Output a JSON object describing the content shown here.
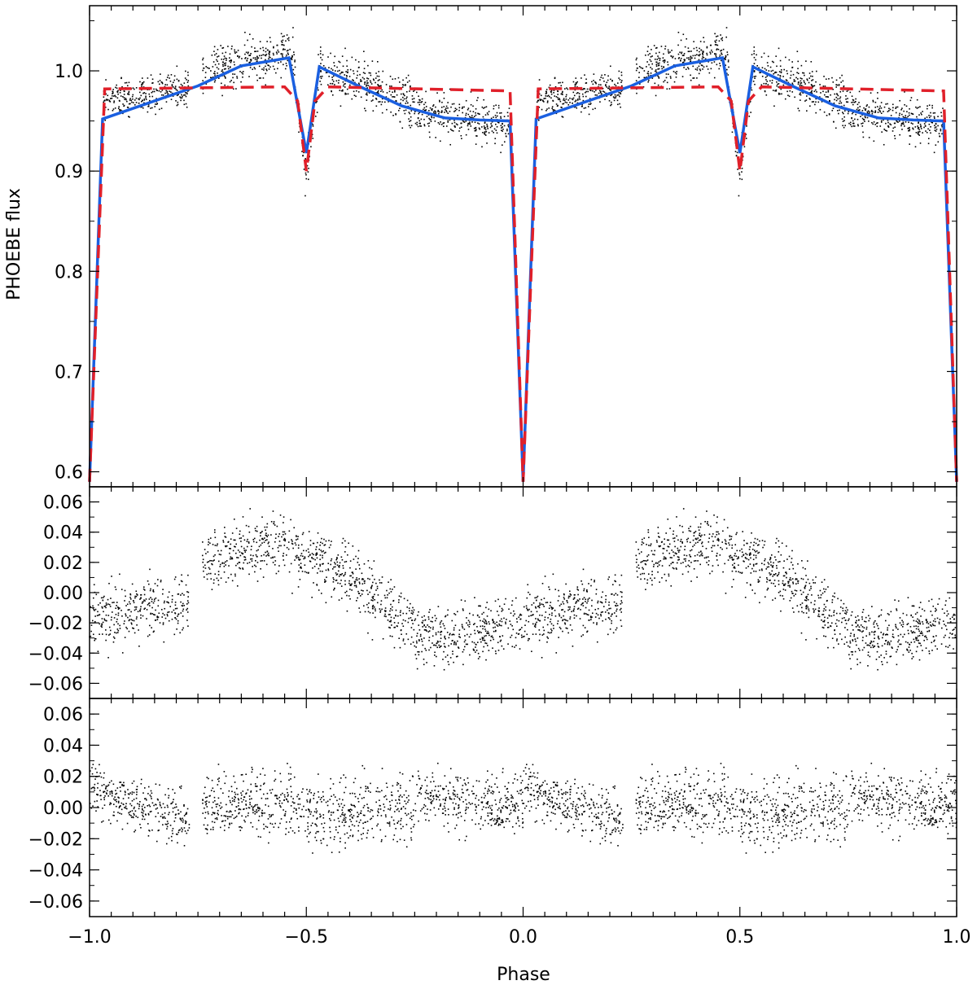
{
  "chart_data": [
    {
      "type": "scatter",
      "panel": "light-curve",
      "ylabel": "PHOEBE flux",
      "xlim": [
        -1.0,
        1.0
      ],
      "ylim": [
        0.585,
        1.065
      ],
      "yticks": [
        "0.6",
        "0.7",
        "0.8",
        "0.9",
        "1.0"
      ],
      "ytick_values": [
        0.6,
        0.7,
        0.8,
        0.9,
        1.0
      ],
      "grid": false,
      "series": [
        {
          "style": "black-dots",
          "color": "#000000",
          "description_points": "observed flux versus phase, mirrored about phase 0",
          "segments": [
            {
              "x_range": [
                0.03,
                0.23
              ],
              "y_start": 0.968,
              "y_end": 0.985,
              "scatter": 0.018
            },
            {
              "x_range": [
                0.26,
                0.47
              ],
              "y_start": 1.0,
              "y_end": 1.02,
              "scatter": 0.02
            },
            {
              "x_range": [
                0.47,
                0.53
              ],
              "dip_min": 0.895,
              "scatter": 0.02
            },
            {
              "x_range": [
                0.53,
                0.75
              ],
              "y_start": 1.005,
              "y_end": 0.965,
              "scatter": 0.022
            },
            {
              "x_range": [
                0.75,
                0.97
              ],
              "y_start": 0.96,
              "y_end": 0.945,
              "scatter": 0.018
            }
          ]
        },
        {
          "style": "solid",
          "color": "#1a5fe0",
          "x": [
            0.0,
            0.03,
            0.25,
            0.35,
            0.46,
            0.5,
            0.53,
            0.62,
            0.72,
            0.82,
            0.9,
            0.97,
            1.0
          ],
          "y": [
            0.59,
            0.952,
            0.985,
            1.005,
            1.013,
            0.918,
            1.004,
            0.985,
            0.965,
            0.953,
            0.951,
            0.95,
            0.59
          ],
          "mirrored": true
        },
        {
          "style": "dashed",
          "color": "#e0202a",
          "x": [
            0.0,
            0.035,
            0.45,
            0.48,
            0.5,
            0.52,
            0.55,
            0.97,
            1.0
          ],
          "y": [
            0.59,
            0.982,
            0.984,
            0.97,
            0.9,
            0.97,
            0.984,
            0.98,
            0.59
          ],
          "mirrored": true
        }
      ]
    },
    {
      "type": "scatter",
      "panel": "residuals-1",
      "xlim": [
        -1.0,
        1.0
      ],
      "ylim": [
        -0.07,
        0.07
      ],
      "yticks": [
        "0.06",
        "0.04",
        "0.02",
        "0.00",
        "−0.02",
        "−0.04",
        "−0.06"
      ],
      "ytick_values": [
        0.06,
        0.04,
        0.02,
        0.0,
        -0.02,
        -0.04,
        -0.06
      ],
      "series": [
        {
          "style": "black-dots",
          "color": "#000000",
          "periodic": true,
          "segments": [
            {
              "x_range": [
                0.0,
                0.23
              ],
              "y_start": -0.018,
              "y_end": -0.005,
              "scatter": 0.017
            },
            {
              "x_range": [
                0.26,
                0.45
              ],
              "y_start": 0.02,
              "y_end": 0.035,
              "scatter": 0.018
            },
            {
              "x_range": [
                0.45,
                0.62
              ],
              "y_start": 0.03,
              "y_end": 0.01,
              "scatter": 0.018
            },
            {
              "x_range": [
                0.62,
                0.75
              ],
              "y_start": 0.005,
              "y_end": -0.025,
              "scatter": 0.018
            },
            {
              "x_range": [
                0.75,
                1.0
              ],
              "y_start": -0.03,
              "y_end": -0.02,
              "scatter": 0.016
            }
          ]
        }
      ]
    },
    {
      "type": "scatter",
      "panel": "residuals-2",
      "xlabel": "Phase",
      "xlim": [
        -1.0,
        1.0
      ],
      "ylim": [
        -0.07,
        0.07
      ],
      "xticks": [
        "−1.0",
        "−0.5",
        "0.0",
        "0.5",
        "1.0"
      ],
      "xtick_values": [
        -1.0,
        -0.5,
        0.0,
        0.5,
        1.0
      ],
      "yticks": [
        "0.06",
        "0.04",
        "0.02",
        "0.00",
        "−0.02",
        "−0.04",
        "−0.06"
      ],
      "ytick_values": [
        0.06,
        0.04,
        0.02,
        0.0,
        -0.02,
        -0.04,
        -0.06
      ],
      "series": [
        {
          "style": "black-dots",
          "color": "#000000",
          "periodic": true,
          "segments": [
            {
              "x_range": [
                0.0,
                0.23
              ],
              "y_start": 0.012,
              "y_end": -0.01,
              "scatter": 0.015
            },
            {
              "x_range": [
                0.26,
                0.5
              ],
              "y_start": 0.0,
              "y_end": 0.005,
              "scatter": 0.018
            },
            {
              "x_range": [
                0.5,
                0.75
              ],
              "y_start": -0.005,
              "y_end": 0.0,
              "scatter": 0.02
            },
            {
              "x_range": [
                0.75,
                1.0
              ],
              "y_start": 0.008,
              "y_end": 0.0,
              "scatter": 0.016
            }
          ]
        }
      ]
    }
  ]
}
